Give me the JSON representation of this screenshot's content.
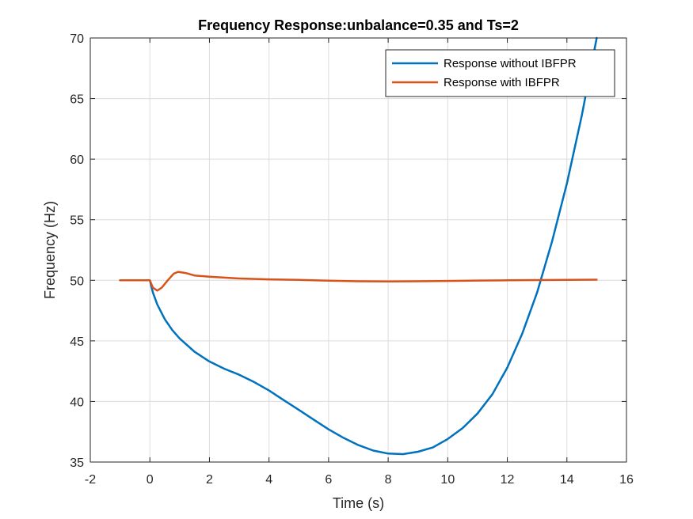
{
  "chart_data": {
    "type": "line",
    "title": "Frequency Response:unbalance=0.35 and Ts=2",
    "xlabel": "Time (s)",
    "ylabel": "Frequency (Hz)",
    "xlim": [
      -2,
      16
    ],
    "ylim": [
      35,
      70
    ],
    "xticks": [
      -2,
      0,
      2,
      4,
      6,
      8,
      10,
      12,
      14,
      16
    ],
    "yticks": [
      35,
      40,
      45,
      50,
      55,
      60,
      65,
      70
    ],
    "grid": true,
    "legend": "top-right",
    "series": [
      {
        "name": "Response without IBFPR",
        "color": "#0072BD",
        "x": [
          -1,
          0,
          0.1,
          0.25,
          0.5,
          0.75,
          1,
          1.5,
          2,
          2.5,
          3,
          3.5,
          4,
          4.5,
          5,
          5.5,
          6,
          6.5,
          7,
          7.5,
          8,
          8.5,
          9,
          9.5,
          10,
          10.5,
          11,
          11.5,
          12,
          12.5,
          13,
          13.5,
          14,
          14.5,
          15
        ],
        "y": [
          50,
          50,
          49.0,
          48.0,
          46.8,
          45.9,
          45.2,
          44.1,
          43.3,
          42.7,
          42.2,
          41.6,
          40.9,
          40.1,
          39.3,
          38.5,
          37.7,
          37.0,
          36.4,
          35.95,
          35.7,
          35.65,
          35.85,
          36.2,
          36.9,
          37.8,
          39.0,
          40.6,
          42.8,
          45.6,
          49.0,
          53.2,
          58.0,
          63.6,
          70.0
        ]
      },
      {
        "name": "Response with IBFPR",
        "color": "#D95319",
        "x": [
          -1,
          0,
          0.1,
          0.25,
          0.4,
          0.6,
          0.8,
          0.95,
          1.2,
          1.5,
          2,
          3,
          4,
          5,
          6,
          7,
          8,
          9,
          10,
          11,
          12,
          13,
          14,
          15
        ],
        "y": [
          50,
          50,
          49.4,
          49.15,
          49.4,
          50.0,
          50.55,
          50.7,
          50.6,
          50.4,
          50.3,
          50.15,
          50.08,
          50.03,
          49.97,
          49.92,
          49.9,
          49.92,
          49.95,
          49.98,
          50.0,
          50.02,
          50.03,
          50.05
        ]
      }
    ]
  }
}
